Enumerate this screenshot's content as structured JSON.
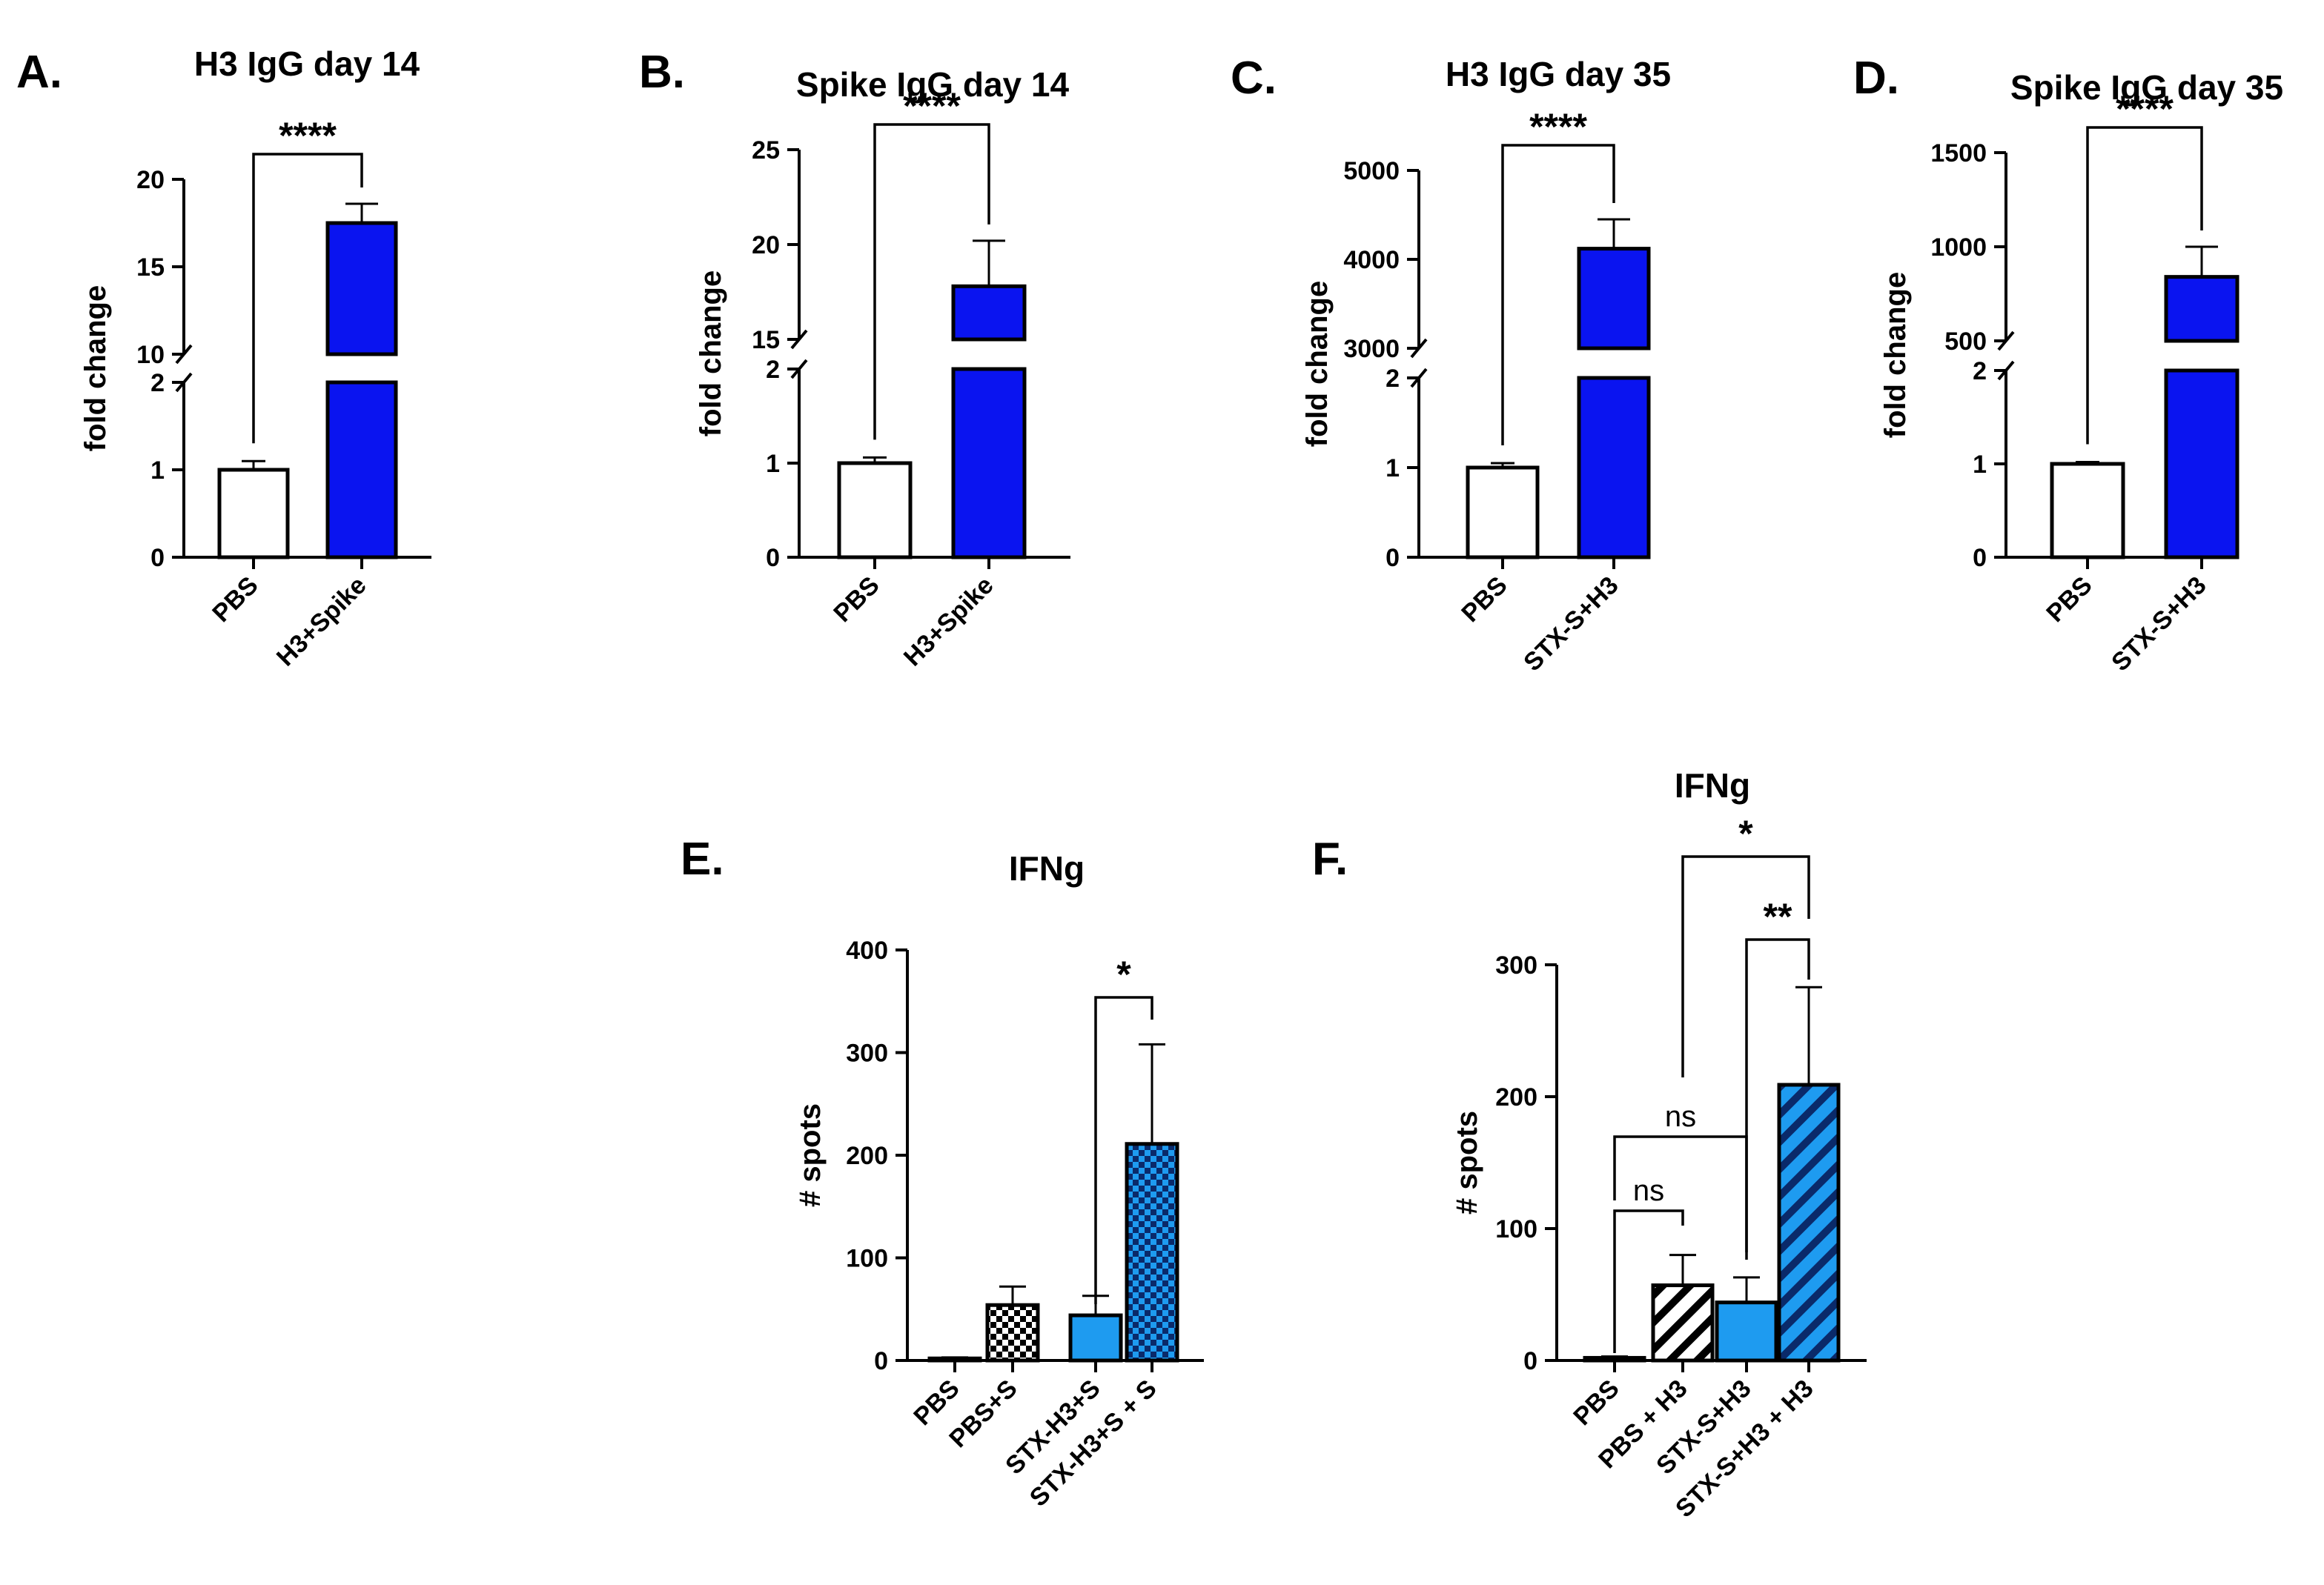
{
  "chart_data": [
    {
      "id": "A",
      "panel_label": "A.",
      "type": "bar",
      "title": "H3 IgG day 14",
      "ylabel": "fold change",
      "categories": [
        "PBS",
        "H3+Spike"
      ],
      "values": [
        1.0,
        17.5
      ],
      "errors_upper": [
        1.1,
        18.6
      ],
      "bar_colors": [
        "#ffffff",
        "#0a14f0"
      ],
      "y_lower_segment": {
        "range": [
          0,
          2
        ],
        "ticks": [
          0,
          1,
          2
        ]
      },
      "y_upper_segment": {
        "range": [
          10,
          20
        ],
        "ticks": [
          10,
          15,
          20
        ]
      },
      "significance": [
        {
          "from": "PBS",
          "to": "H3+Spike",
          "label": "****"
        }
      ]
    },
    {
      "id": "B",
      "panel_label": "B.",
      "type": "bar",
      "title": "Spike IgG day 14",
      "ylabel": "fold change",
      "categories": [
        "PBS",
        "H3+Spike"
      ],
      "values": [
        1.0,
        17.8
      ],
      "errors_upper": [
        1.06,
        20.2
      ],
      "bar_colors": [
        "#ffffff",
        "#0a14f0"
      ],
      "y_lower_segment": {
        "range": [
          0,
          2
        ],
        "ticks": [
          0,
          1,
          2
        ]
      },
      "y_upper_segment": {
        "range": [
          15,
          25
        ],
        "ticks": [
          15,
          20,
          25
        ]
      },
      "significance": [
        {
          "from": "PBS",
          "to": "H3+Spike",
          "label": "****"
        }
      ]
    },
    {
      "id": "C",
      "panel_label": "C.",
      "type": "bar",
      "title": "H3 IgG day 35",
      "ylabel": "fold change",
      "categories": [
        "PBS",
        "STX-S+H3"
      ],
      "values": [
        1.0,
        4120
      ],
      "errors_upper": [
        1.05,
        4450
      ],
      "bar_colors": [
        "#ffffff",
        "#0a14f0"
      ],
      "y_lower_segment": {
        "range": [
          0,
          2
        ],
        "ticks": [
          0,
          1,
          2
        ]
      },
      "y_upper_segment": {
        "range": [
          3000,
          5000
        ],
        "ticks": [
          3000,
          4000,
          5000
        ]
      },
      "significance": [
        {
          "from": "PBS",
          "to": "STX-S+H3",
          "label": "****"
        }
      ]
    },
    {
      "id": "D",
      "panel_label": "D.",
      "type": "bar",
      "title": "Spike IgG day 35",
      "ylabel": "fold change",
      "categories": [
        "PBS",
        "STX-S+H3"
      ],
      "values": [
        1.0,
        840
      ],
      "errors_upper": [
        1.02,
        1000
      ],
      "bar_colors": [
        "#ffffff",
        "#0a14f0"
      ],
      "y_lower_segment": {
        "range": [
          0,
          2
        ],
        "ticks": [
          0,
          1,
          2
        ]
      },
      "y_upper_segment": {
        "range": [
          500,
          1500
        ],
        "ticks": [
          500,
          1000,
          1500
        ]
      },
      "significance": [
        {
          "from": "PBS",
          "to": "STX-S+H3",
          "label": "****"
        }
      ]
    },
    {
      "id": "E",
      "panel_label": "E.",
      "type": "bar",
      "title": "IFNg",
      "ylabel": "# spots",
      "categories": [
        "PBS",
        "PBS+S",
        "STX-H3+S",
        "STX-H3+S + S"
      ],
      "values": [
        2,
        54,
        44,
        211
      ],
      "errors_upper": [
        3,
        72,
        63,
        308
      ],
      "bar_colors": [
        "#ffffff",
        "#ffffff",
        "#1e9bf0",
        "#1e9bf0"
      ],
      "bar_patterns": [
        "none",
        "checker",
        "none",
        "checker"
      ],
      "ylim": [
        0,
        400
      ],
      "yticks": [
        0,
        100,
        200,
        300,
        400
      ],
      "significance": [
        {
          "from": "STX-H3+S",
          "to": "STX-H3+S + S",
          "label": "*"
        }
      ]
    },
    {
      "id": "F",
      "panel_label": "F.",
      "type": "bar",
      "title": "IFNg",
      "ylabel": "# spots",
      "categories": [
        "PBS",
        "PBS + H3",
        "STX-S+H3",
        "STX-S+H3 + H3"
      ],
      "values": [
        2,
        57,
        44,
        209
      ],
      "errors_upper": [
        3,
        80,
        63,
        283
      ],
      "bar_colors": [
        "#ffffff",
        "#ffffff",
        "#1e9bf0",
        "#1e9bf0"
      ],
      "bar_patterns": [
        "none",
        "stripes",
        "none",
        "stripes"
      ],
      "ylim": [
        0,
        300
      ],
      "yticks": [
        0,
        100,
        200,
        300
      ],
      "significance": [
        {
          "from": "PBS",
          "to": "PBS + H3",
          "label": "ns"
        },
        {
          "from": "PBS",
          "to": "STX-S+H3",
          "label": "ns"
        },
        {
          "from": "STX-S+H3",
          "to": "STX-S+H3 + H3",
          "label": "**"
        },
        {
          "from": "PBS + H3",
          "to": "STX-S+H3 + H3",
          "label": "*"
        }
      ]
    }
  ]
}
